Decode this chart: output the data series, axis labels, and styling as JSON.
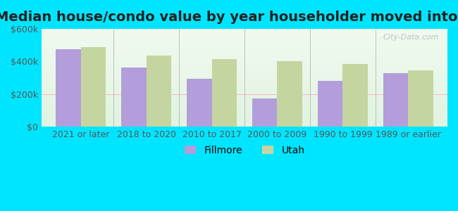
{
  "title": "Median house/condo value by year householder moved into unit",
  "categories": [
    "2021 or later",
    "2018 to 2020",
    "2010 to 2017",
    "2000 to 2009",
    "1990 to 1999",
    "1989 or earlier"
  ],
  "fillmore_values": [
    475000,
    365000,
    295000,
    175000,
    280000,
    330000
  ],
  "utah_values": [
    490000,
    435000,
    415000,
    400000,
    385000,
    345000
  ],
  "fillmore_color": "#b39ddb",
  "utah_color": "#c5d5a0",
  "background_outer": "#00e5ff",
  "background_inner_top": "#e8f5e9",
  "background_inner_bottom": "#f0f8f0",
  "ylim": [
    0,
    600000
  ],
  "yticks": [
    0,
    200000,
    400000,
    600000
  ],
  "ytick_labels": [
    "$0",
    "$200k",
    "$400k",
    "$600k"
  ],
  "ylabel": "",
  "xlabel": "",
  "bar_width": 0.38,
  "legend_labels": [
    "Fillmore",
    "Utah"
  ],
  "title_fontsize": 14,
  "tick_fontsize": 9,
  "legend_fontsize": 10,
  "watermark": "City-Data.com"
}
